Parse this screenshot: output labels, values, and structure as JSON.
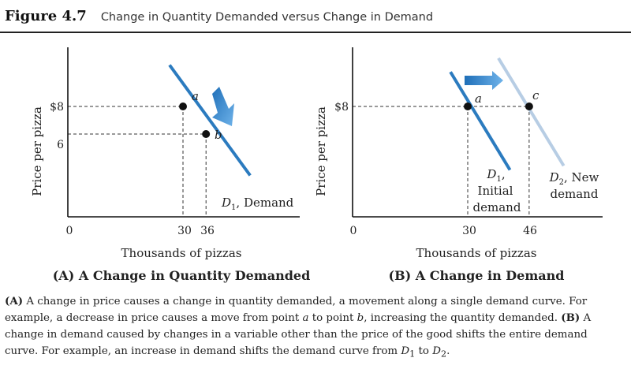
{
  "figure": {
    "number": "Figure 4.7",
    "title": "Change in Quantity Demanded versus Change in Demand"
  },
  "chart_data": [
    {
      "type": "line",
      "panel_title": "(A) A Change in Quantity Demanded",
      "xlabel": "Thousands of pizzas",
      "ylabel": "Price per pizza",
      "x_ticks": [
        "0",
        "30",
        "36"
      ],
      "y_ticks": [
        "$8",
        "6"
      ],
      "series": [
        {
          "name": "D1, Demand",
          "color": "#2b7bbf",
          "x": [
            26.5,
            47.5
          ],
          "y": [
            11.0,
            3.0
          ]
        }
      ],
      "points": [
        {
          "label": "a",
          "x": 30,
          "y": 8
        },
        {
          "label": "b",
          "x": 36,
          "y": 6
        }
      ],
      "curve_label": {
        "main": "D",
        "sub": "1",
        "rest": ", Demand"
      },
      "arrow": "movement along the curve from a to b"
    },
    {
      "type": "line",
      "panel_title": "(B) A Change in Demand",
      "xlabel": "Thousands of pizzas",
      "ylabel": "Price per pizza",
      "x_ticks": [
        "0",
        "30",
        "46"
      ],
      "y_ticks": [
        "$8"
      ],
      "series": [
        {
          "name": "D1, Initial demand",
          "color": "#2b7bbf",
          "x": [
            25.5,
            41.0
          ],
          "y": [
            10.5,
            3.4
          ]
        },
        {
          "name": "D2, New demand",
          "color": "#b7cde4",
          "x": [
            38.0,
            55.0
          ],
          "y": [
            11.5,
            3.7
          ]
        }
      ],
      "points": [
        {
          "label": "a",
          "x": 30,
          "y": 8
        },
        {
          "label": "c",
          "x": 46,
          "y": 8
        }
      ],
      "curve_label_1": {
        "main": "D",
        "sub": "1",
        "rest": ",",
        "line2": "Initial",
        "line3": "demand"
      },
      "curve_label_2": {
        "main": "D",
        "sub": "2",
        "rest": ", New",
        "line2": "demand"
      },
      "arrow": "demand curve shifts right"
    }
  ],
  "caption": {
    "a_tag": "(A)",
    "a_text1": " A change in price causes a change in quantity demanded, a movement along a single demand curve. For example, a decrease in price causes a move from point ",
    "a_pt1": "a",
    "a_text2": " to point ",
    "a_pt2": "b",
    "a_text3": ", increasing the quantity demanded. ",
    "b_tag": "(B)",
    "b_text1": " A change in demand caused by changes in a variable other than the price of the good shifts the entire demand curve. For example, an increase in demand shifts the demand curve from ",
    "d1": "D",
    "d1_sub": "1",
    "b_text2": " to ",
    "d2": "D",
    "d2_sub": "2",
    "b_text3": "."
  },
  "colors": {
    "curve": "#2b7bbf",
    "new_curve": "#b7cde4",
    "arrow": "#3a8fd6",
    "axis": "#111111"
  }
}
